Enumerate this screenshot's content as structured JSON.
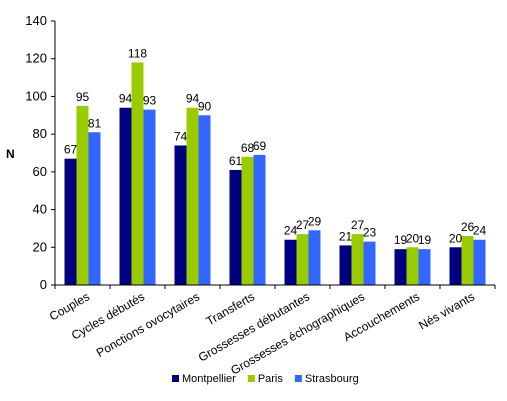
{
  "chart_data": {
    "type": "bar",
    "title": "",
    "xlabel": "",
    "ylabel": "N",
    "ylim": [
      0,
      140
    ],
    "ytick_step": 20,
    "grid": false,
    "legend_position": "bottom",
    "categories": [
      "Couples",
      "Cycles débutés",
      "Ponctions ovocytaires",
      "Transferts",
      "Grossesses débutantes",
      "Grossesses échographiques",
      "Accouchements",
      "Nés vivants"
    ],
    "series": [
      {
        "name": "Montpellier",
        "color": "#000080",
        "values": [
          67,
          94,
          74,
          61,
          24,
          21,
          19,
          20
        ]
      },
      {
        "name": "Paris",
        "color": "#99cc00",
        "values": [
          95,
          118,
          94,
          68,
          27,
          27,
          20,
          26
        ]
      },
      {
        "name": "Strasbourg",
        "color": "#3366ff",
        "values": [
          81,
          93,
          90,
          69,
          29,
          23,
          19,
          24
        ]
      }
    ]
  }
}
